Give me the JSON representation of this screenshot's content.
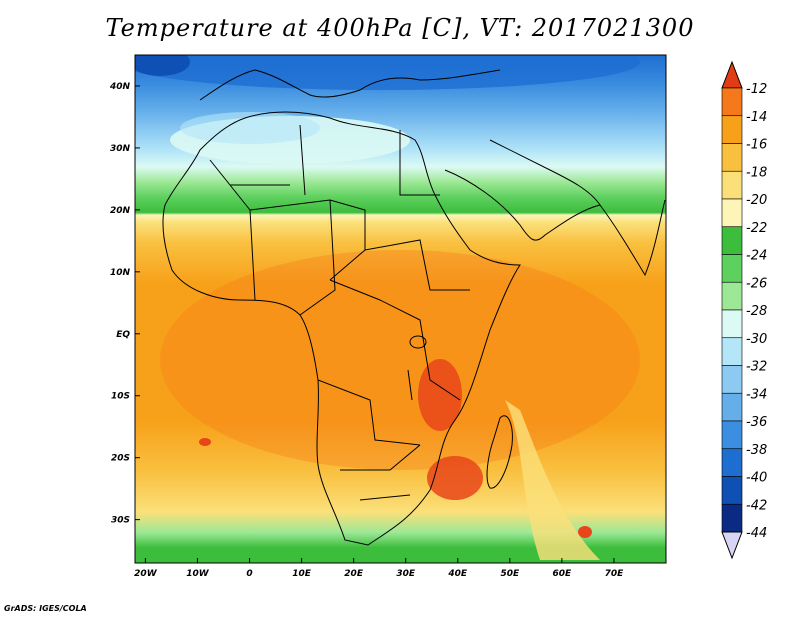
{
  "title": "Temperature at 400hPa [C], VT: 2017021300",
  "credit": "GrADS: IGES/COLA",
  "map": {
    "lon_range": [
      -22,
      80
    ],
    "lat_range": [
      -37,
      45
    ],
    "lon_ticks": [
      {
        "value": -20,
        "label": "20W"
      },
      {
        "value": -10,
        "label": "10W"
      },
      {
        "value": 0,
        "label": "0"
      },
      {
        "value": 10,
        "label": "10E"
      },
      {
        "value": 20,
        "label": "20E"
      },
      {
        "value": 30,
        "label": "30E"
      },
      {
        "value": 40,
        "label": "40E"
      },
      {
        "value": 50,
        "label": "50E"
      },
      {
        "value": 60,
        "label": "60E"
      },
      {
        "value": 70,
        "label": "70E"
      }
    ],
    "lat_ticks": [
      {
        "value": 40,
        "label": "40N"
      },
      {
        "value": 30,
        "label": "30N"
      },
      {
        "value": 20,
        "label": "20N"
      },
      {
        "value": 10,
        "label": "10N"
      },
      {
        "value": 0,
        "label": "EQ"
      },
      {
        "value": -10,
        "label": "10S"
      },
      {
        "value": -20,
        "label": "20S"
      },
      {
        "value": -30,
        "label": "30S"
      }
    ]
  },
  "colorbar": {
    "levels": [
      -12,
      -14,
      -16,
      -18,
      -20,
      -22,
      -24,
      -26,
      -28,
      -30,
      -32,
      -34,
      -36,
      -38,
      -40,
      -42,
      -44
    ],
    "colors": [
      "#e8461a",
      "#f5781a",
      "#f7a11a",
      "#f9c040",
      "#fbe07a",
      "#fdf5b8",
      "#3cbd3c",
      "#5ed05e",
      "#9de896",
      "#dcfaf4",
      "#b4e6f8",
      "#8ccaf2",
      "#64aeea",
      "#3c8ee0",
      "#1e6ed2",
      "#0f50b4",
      "#0a2a84"
    ],
    "top_triangle_color": "#e23c14",
    "bottom_triangle_color": "#d8d4f4"
  }
}
